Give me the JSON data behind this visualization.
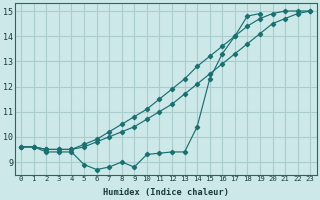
{
  "xlabel": "Humidex (Indice chaleur)",
  "bg_color": "#cce8e8",
  "grid_color": "#aacccc",
  "line_color": "#1a7070",
  "x_values": [
    0,
    1,
    2,
    3,
    4,
    5,
    6,
    7,
    8,
    9,
    10,
    11,
    12,
    13,
    14,
    15,
    16,
    17,
    18,
    19,
    20,
    21,
    22,
    23
  ],
  "line1_y": [
    9.6,
    9.6,
    9.5,
    9.5,
    9.5,
    9.6,
    9.8,
    10.0,
    10.2,
    10.4,
    10.7,
    11.0,
    11.3,
    11.7,
    12.1,
    12.5,
    12.9,
    13.3,
    13.7,
    14.1,
    14.5,
    14.7,
    14.9,
    15.0
  ],
  "line2_y": [
    9.6,
    9.6,
    9.5,
    9.5,
    9.5,
    9.7,
    9.9,
    10.2,
    10.5,
    10.8,
    11.1,
    11.5,
    11.9,
    12.3,
    12.8,
    13.2,
    13.6,
    14.0,
    14.4,
    14.7,
    14.9,
    15.0,
    15.0,
    15.0
  ],
  "line3_x": [
    0,
    1,
    2,
    3,
    4,
    5,
    6,
    7,
    8,
    9,
    10,
    11,
    12,
    13,
    14,
    15,
    16,
    17,
    18,
    19
  ],
  "line3_y": [
    9.6,
    9.6,
    9.4,
    9.4,
    9.4,
    8.9,
    8.7,
    8.8,
    9.0,
    8.8,
    9.3,
    9.35,
    9.4,
    9.4,
    10.4,
    12.3,
    13.3,
    14.0,
    14.8,
    14.9
  ],
  "xlim": [
    -0.5,
    23.5
  ],
  "ylim": [
    8.5,
    15.3
  ],
  "yticks": [
    9,
    10,
    11,
    12,
    13,
    14,
    15
  ],
  "xticks": [
    0,
    1,
    2,
    3,
    4,
    5,
    6,
    7,
    8,
    9,
    10,
    11,
    12,
    13,
    14,
    15,
    16,
    17,
    18,
    19,
    20,
    21,
    22,
    23
  ]
}
